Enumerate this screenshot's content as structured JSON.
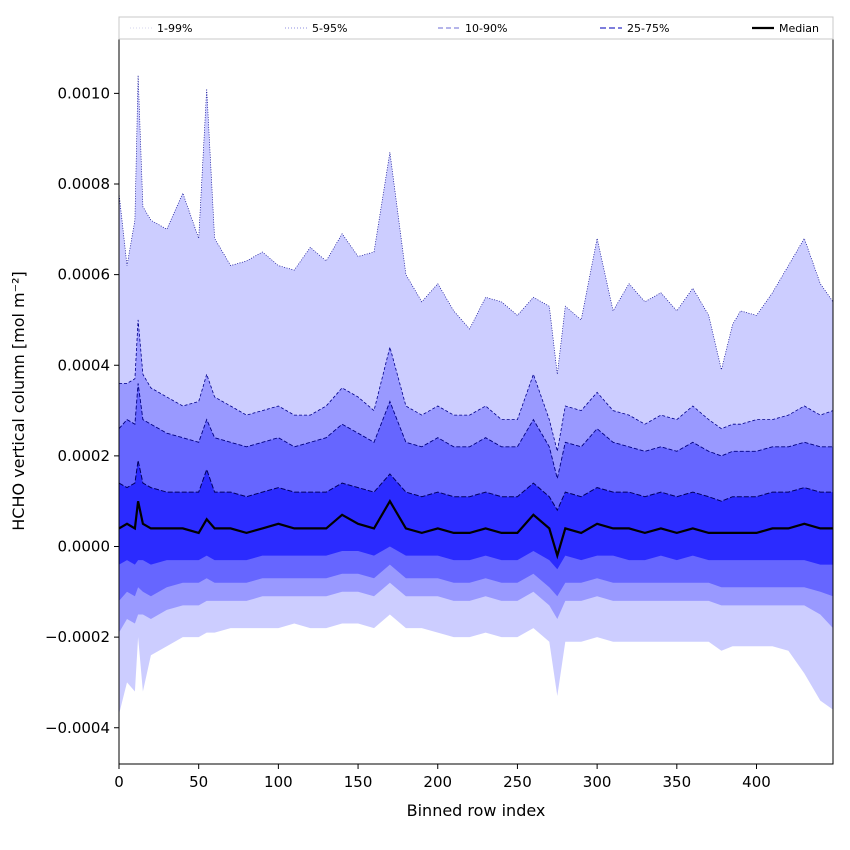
{
  "chart_data": {
    "type": "area",
    "xlabel": "Binned row index",
    "ylabel": "HCHO vertical column [mol m⁻²]",
    "xlim": [
      0,
      448
    ],
    "ylim": [
      -0.00048,
      0.00112
    ],
    "xticks": [
      0,
      50,
      100,
      150,
      200,
      250,
      300,
      350,
      400
    ],
    "xtick_labels": [
      "0",
      "50",
      "100",
      "150",
      "200",
      "250",
      "300",
      "350",
      "400"
    ],
    "yticks": [
      -0.0004,
      -0.0002,
      0.0,
      0.0002,
      0.0004,
      0.0006,
      0.0008,
      0.001
    ],
    "ytick_labels": [
      "−0.0004",
      "−0.0002",
      "0.0000",
      "0.0002",
      "0.0004",
      "0.0006",
      "0.0008",
      "0.0010"
    ],
    "grid": false,
    "legend_position": "top",
    "legend": [
      {
        "label": "1-99%",
        "color": "#c8c8e6",
        "dash": "1,2",
        "width": 0.8
      },
      {
        "label": "5-95%",
        "color": "#6b6bd6",
        "dash": "1,2",
        "width": 0.8
      },
      {
        "label": "10-90%",
        "color": "#6b6bd6",
        "dash": "5,3",
        "width": 1.0
      },
      {
        "label": "25-75%",
        "color": "#3030c8",
        "dash": "6,3",
        "width": 1.2
      },
      {
        "label": "Median",
        "color": "#000000",
        "dash": "",
        "width": 2.2
      }
    ],
    "band_colors": [
      "#cccdff",
      "#9999ff",
      "#6666ff",
      "#2b2bff"
    ],
    "median_color": "#000000",
    "x": [
      0,
      5,
      10,
      12,
      15,
      20,
      30,
      40,
      50,
      55,
      60,
      70,
      80,
      90,
      100,
      110,
      120,
      130,
      140,
      150,
      160,
      170,
      180,
      190,
      200,
      210,
      220,
      230,
      240,
      250,
      260,
      270,
      275,
      280,
      290,
      300,
      310,
      320,
      330,
      340,
      350,
      360,
      370,
      378,
      385,
      390,
      400,
      410,
      420,
      430,
      440,
      448
    ],
    "series": [
      {
        "name": "p99",
        "values": [
          0.00078,
          0.00062,
          0.00072,
          0.00104,
          0.00075,
          0.00072,
          0.0007,
          0.00078,
          0.00068,
          0.00101,
          0.00068,
          0.00062,
          0.00063,
          0.00065,
          0.00062,
          0.00061,
          0.00066,
          0.00063,
          0.00069,
          0.00064,
          0.00065,
          0.00087,
          0.0006,
          0.00054,
          0.00058,
          0.00052,
          0.00048,
          0.00055,
          0.00054,
          0.00051,
          0.00055,
          0.00053,
          0.00038,
          0.00053,
          0.0005,
          0.00068,
          0.00052,
          0.00058,
          0.00054,
          0.00056,
          0.00052,
          0.00057,
          0.00051,
          0.00039,
          0.00049,
          0.00052,
          0.00051,
          0.00056,
          0.00062,
          0.00068,
          0.00058,
          0.00054
        ]
      },
      {
        "name": "p95",
        "values": [
          0.00036,
          0.00036,
          0.00037,
          0.0005,
          0.00038,
          0.00035,
          0.00033,
          0.00031,
          0.00032,
          0.00038,
          0.00033,
          0.00031,
          0.00029,
          0.0003,
          0.00031,
          0.00029,
          0.00029,
          0.00031,
          0.00035,
          0.00033,
          0.0003,
          0.00044,
          0.00031,
          0.00029,
          0.00031,
          0.00029,
          0.00029,
          0.00031,
          0.00028,
          0.00028,
          0.00038,
          0.00028,
          0.00021,
          0.00031,
          0.0003,
          0.00034,
          0.0003,
          0.00029,
          0.00027,
          0.00029,
          0.00028,
          0.00031,
          0.00028,
          0.00026,
          0.00027,
          0.00027,
          0.00028,
          0.00028,
          0.00029,
          0.00031,
          0.00029,
          0.0003
        ]
      },
      {
        "name": "p90",
        "values": [
          0.00026,
          0.00028,
          0.00027,
          0.00036,
          0.00028,
          0.00027,
          0.00025,
          0.00024,
          0.00023,
          0.00028,
          0.00024,
          0.00023,
          0.00022,
          0.00023,
          0.00024,
          0.00022,
          0.00023,
          0.00024,
          0.00027,
          0.00025,
          0.00023,
          0.00032,
          0.00023,
          0.00022,
          0.00024,
          0.00022,
          0.00022,
          0.00024,
          0.00022,
          0.00022,
          0.00028,
          0.00022,
          0.00015,
          0.00023,
          0.00022,
          0.00026,
          0.00023,
          0.00022,
          0.00021,
          0.00022,
          0.00021,
          0.00023,
          0.00021,
          0.0002,
          0.00021,
          0.00021,
          0.00021,
          0.00022,
          0.00022,
          0.00023,
          0.00022,
          0.00022
        ]
      },
      {
        "name": "p75",
        "values": [
          0.00014,
          0.00013,
          0.00014,
          0.00019,
          0.00014,
          0.00013,
          0.00012,
          0.00012,
          0.00012,
          0.00017,
          0.00012,
          0.00012,
          0.00011,
          0.00012,
          0.00013,
          0.00012,
          0.00012,
          0.00012,
          0.00014,
          0.00013,
          0.00012,
          0.00016,
          0.00012,
          0.00011,
          0.00012,
          0.00011,
          0.00011,
          0.00012,
          0.00011,
          0.00011,
          0.00014,
          0.00011,
          8e-05,
          0.00012,
          0.00011,
          0.00013,
          0.00012,
          0.00012,
          0.00011,
          0.00012,
          0.00011,
          0.00012,
          0.00011,
          0.0001,
          0.00011,
          0.00011,
          0.00011,
          0.00012,
          0.00012,
          0.00013,
          0.00012,
          0.00012
        ]
      },
      {
        "name": "Median",
        "values": [
          4e-05,
          5e-05,
          4e-05,
          0.0001,
          5e-05,
          4e-05,
          4e-05,
          4e-05,
          3e-05,
          6e-05,
          4e-05,
          4e-05,
          3e-05,
          4e-05,
          5e-05,
          4e-05,
          4e-05,
          4e-05,
          7e-05,
          5e-05,
          4e-05,
          0.0001,
          4e-05,
          3e-05,
          4e-05,
          3e-05,
          3e-05,
          4e-05,
          3e-05,
          3e-05,
          7e-05,
          4e-05,
          -2e-05,
          4e-05,
          3e-05,
          5e-05,
          4e-05,
          4e-05,
          3e-05,
          4e-05,
          3e-05,
          4e-05,
          3e-05,
          3e-05,
          3e-05,
          3e-05,
          3e-05,
          4e-05,
          4e-05,
          5e-05,
          4e-05,
          4e-05
        ]
      },
      {
        "name": "p25",
        "values": [
          -4e-05,
          -3e-05,
          -4e-05,
          -3e-05,
          -3e-05,
          -4e-05,
          -3e-05,
          -3e-05,
          -3e-05,
          -2e-05,
          -3e-05,
          -3e-05,
          -3e-05,
          -2e-05,
          -2e-05,
          -2e-05,
          -2e-05,
          -2e-05,
          -1e-05,
          -1e-05,
          -2e-05,
          0.0,
          -2e-05,
          -2e-05,
          -2e-05,
          -3e-05,
          -3e-05,
          -2e-05,
          -3e-05,
          -3e-05,
          -1e-05,
          -3e-05,
          -5e-05,
          -2e-05,
          -3e-05,
          -2e-05,
          -2e-05,
          -3e-05,
          -3e-05,
          -2e-05,
          -3e-05,
          -2e-05,
          -3e-05,
          -3e-05,
          -3e-05,
          -3e-05,
          -3e-05,
          -3e-05,
          -3e-05,
          -3e-05,
          -4e-05,
          -4e-05
        ]
      },
      {
        "name": "p10",
        "values": [
          -0.00012,
          -0.0001,
          -0.00011,
          -9e-05,
          -0.0001,
          -0.00011,
          -9e-05,
          -8e-05,
          -8e-05,
          -7e-05,
          -8e-05,
          -8e-05,
          -8e-05,
          -7e-05,
          -7e-05,
          -7e-05,
          -7e-05,
          -7e-05,
          -6e-05,
          -6e-05,
          -7e-05,
          -4e-05,
          -7e-05,
          -7e-05,
          -7e-05,
          -8e-05,
          -8e-05,
          -7e-05,
          -8e-05,
          -8e-05,
          -6e-05,
          -9e-05,
          -0.00011,
          -8e-05,
          -8e-05,
          -7e-05,
          -8e-05,
          -8e-05,
          -8e-05,
          -8e-05,
          -8e-05,
          -8e-05,
          -8e-05,
          -9e-05,
          -9e-05,
          -9e-05,
          -9e-05,
          -9e-05,
          -9e-05,
          -9e-05,
          -0.0001,
          -0.00011
        ]
      },
      {
        "name": "p5",
        "values": [
          -0.00019,
          -0.00016,
          -0.00017,
          -0.00015,
          -0.00015,
          -0.00016,
          -0.00014,
          -0.00013,
          -0.00013,
          -0.00012,
          -0.00012,
          -0.00012,
          -0.00012,
          -0.00011,
          -0.00011,
          -0.00011,
          -0.00011,
          -0.00011,
          -0.0001,
          -0.0001,
          -0.00011,
          -8e-05,
          -0.00011,
          -0.00011,
          -0.00011,
          -0.00012,
          -0.00012,
          -0.00011,
          -0.00012,
          -0.00012,
          -0.0001,
          -0.00013,
          -0.00016,
          -0.00012,
          -0.00012,
          -0.00011,
          -0.00012,
          -0.00012,
          -0.00012,
          -0.00012,
          -0.00012,
          -0.00012,
          -0.00012,
          -0.00013,
          -0.00013,
          -0.00013,
          -0.00013,
          -0.00013,
          -0.00013,
          -0.00013,
          -0.00015,
          -0.00018
        ]
      },
      {
        "name": "p1",
        "values": [
          -0.00037,
          -0.0003,
          -0.00032,
          -0.0002,
          -0.00032,
          -0.00024,
          -0.00022,
          -0.0002,
          -0.0002,
          -0.00019,
          -0.00019,
          -0.00018,
          -0.00018,
          -0.00018,
          -0.00018,
          -0.00017,
          -0.00018,
          -0.00018,
          -0.00017,
          -0.00017,
          -0.00018,
          -0.00015,
          -0.00018,
          -0.00018,
          -0.00019,
          -0.0002,
          -0.0002,
          -0.00019,
          -0.0002,
          -0.0002,
          -0.00018,
          -0.00021,
          -0.00033,
          -0.00021,
          -0.00021,
          -0.0002,
          -0.00021,
          -0.00021,
          -0.00021,
          -0.00021,
          -0.00021,
          -0.00021,
          -0.00021,
          -0.00023,
          -0.00022,
          -0.00022,
          -0.00022,
          -0.00022,
          -0.00023,
          -0.00028,
          -0.00034,
          -0.00036
        ]
      }
    ]
  }
}
